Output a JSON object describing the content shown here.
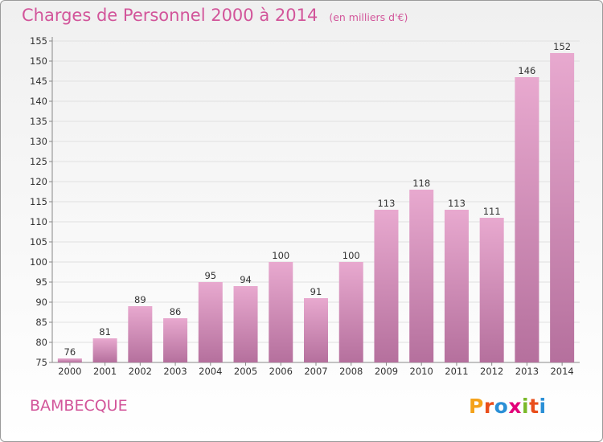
{
  "header": {
    "title": "Charges de Personnel 2000 à 2014",
    "subtitle": "(en milliers d'€)"
  },
  "footer": {
    "commune": "BAMBECQUE",
    "logo": {
      "letters": [
        "P",
        "r",
        "o",
        "x",
        "i",
        "t",
        "i"
      ]
    }
  },
  "colors": {
    "title": "#d2559a",
    "bar_top": "#e8a9cf",
    "bar_bottom": "#b5709d",
    "logo_letters": [
      "#f4a21b",
      "#e94e1b",
      "#2a8fd6",
      "#e2007a",
      "#7ab929",
      "#e94e1b",
      "#2a8fd6"
    ]
  },
  "chart_data": {
    "type": "bar",
    "title": "Charges de Personnel 2000 à 2014",
    "subtitle": "(en milliers d'€)",
    "categories": [
      "2000",
      "2001",
      "2002",
      "2003",
      "2004",
      "2005",
      "2006",
      "2007",
      "2008",
      "2009",
      "2010",
      "2011",
      "2012",
      "2013",
      "2014"
    ],
    "values": [
      76,
      81,
      89,
      86,
      95,
      94,
      100,
      91,
      100,
      113,
      118,
      113,
      111,
      146,
      152
    ],
    "ylim": [
      75,
      155
    ],
    "yticks": [
      75,
      80,
      85,
      90,
      95,
      100,
      105,
      110,
      115,
      120,
      125,
      130,
      135,
      140,
      145,
      150,
      155
    ],
    "grid": true
  }
}
